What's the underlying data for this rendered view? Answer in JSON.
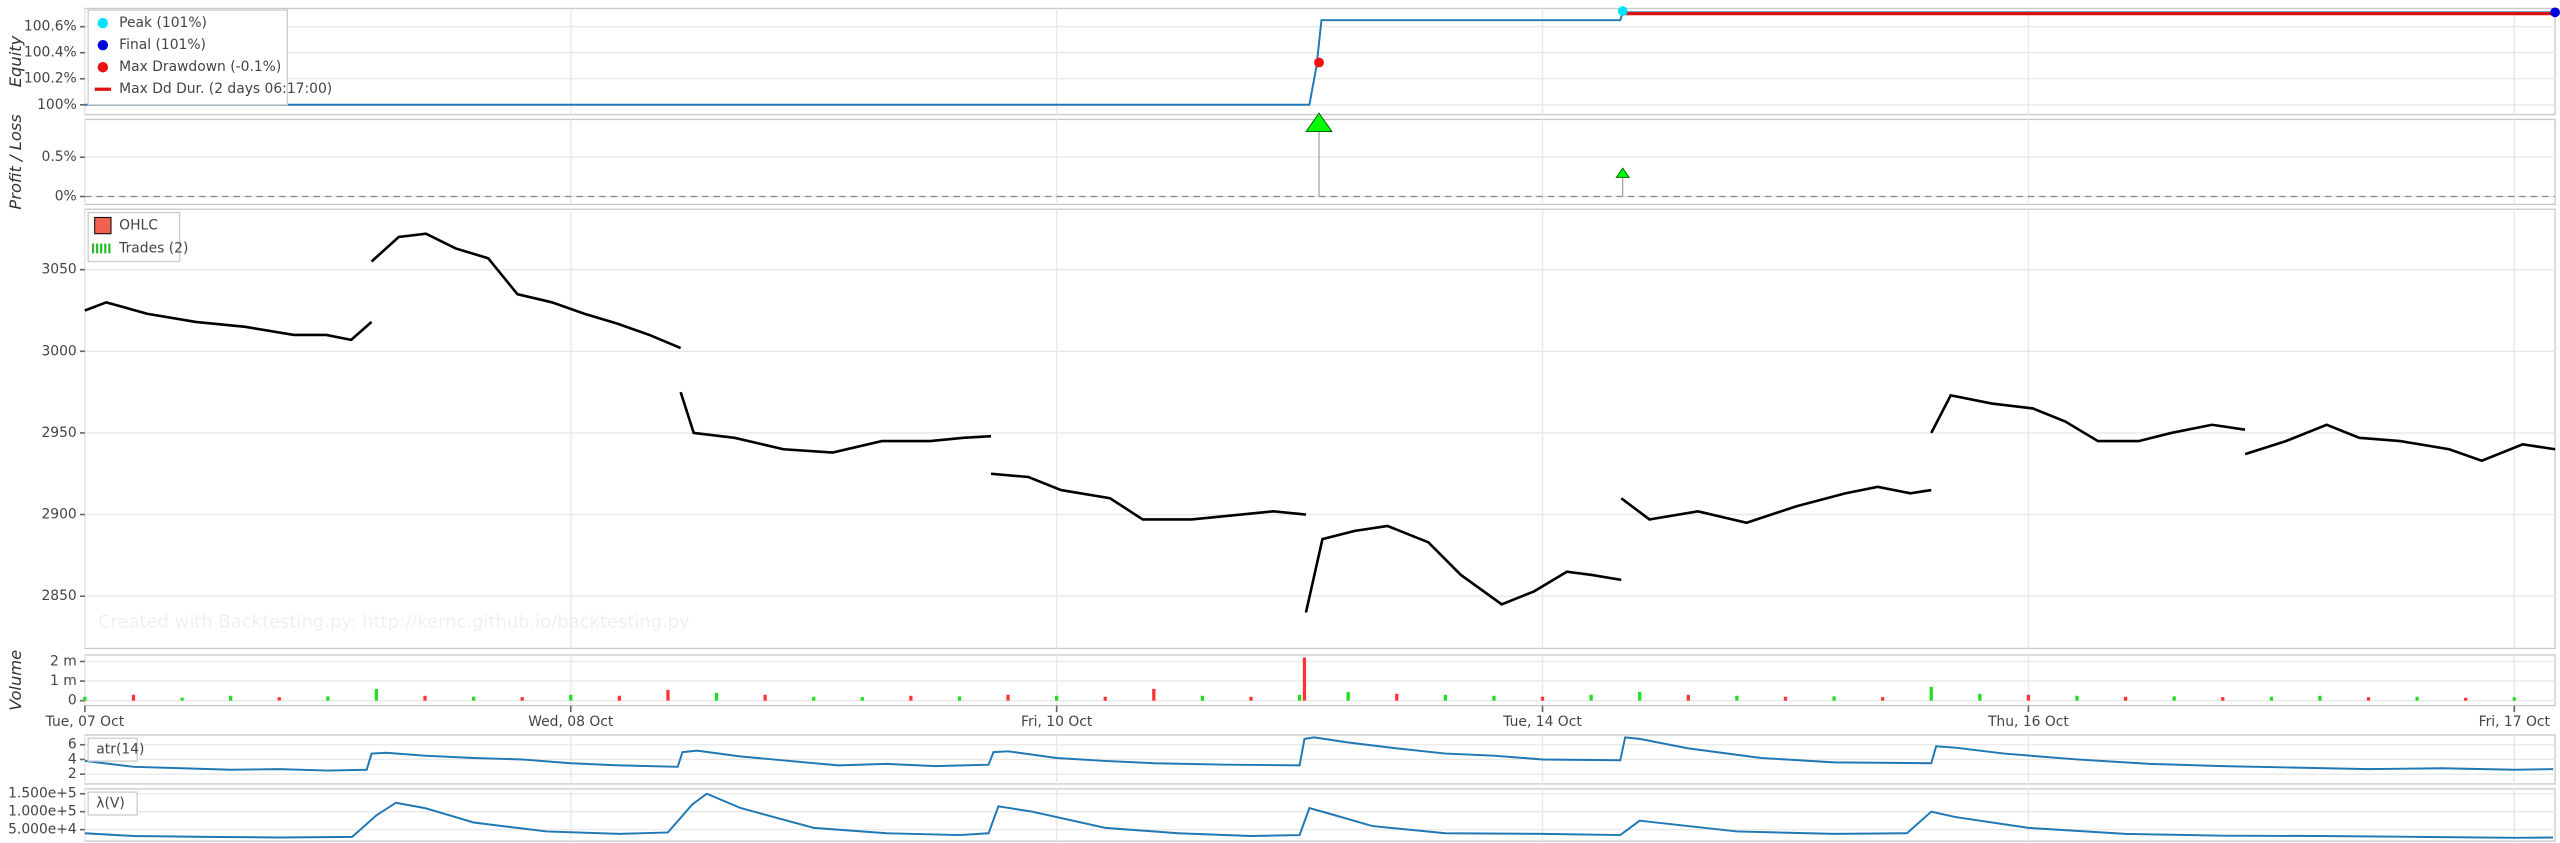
{
  "x_axis": {
    "xlim": [
      0,
      508.4
    ],
    "xticks": [
      {
        "value": 0,
        "label": "Tue, 07 Oct"
      },
      {
        "value": 100,
        "label": "Wed, 08 Oct"
      },
      {
        "value": 200,
        "label": "Fri, 10 Oct"
      },
      {
        "value": 300,
        "label": "Tue, 14 Oct"
      },
      {
        "value": 400,
        "label": "Thu, 16 Oct"
      },
      {
        "value": 500,
        "label": "Fri, 17 Oct"
      }
    ]
  },
  "chart_data": [
    {
      "type": "line",
      "ylabel": "Equity",
      "color": "#1f77b4",
      "ylim": [
        99.925,
        100.74
      ],
      "yticks": [
        {
          "value": 100,
          "label": "100%"
        },
        {
          "value": 100.2,
          "label": "100.2%"
        },
        {
          "value": 100.4,
          "label": "100.4%"
        },
        {
          "value": 100.6,
          "label": "100.6%"
        }
      ],
      "x": [
        0,
        252,
        253.5,
        254.5,
        316,
        316.5,
        508.4
      ],
      "values": [
        100,
        100,
        100.3,
        100.65,
        100.65,
        100.71,
        100.71
      ],
      "markers": [
        {
          "label": "Peak (101%)",
          "color": "#00e5ff",
          "x": 316.5,
          "value": 100.72
        },
        {
          "label": "Final (101%)",
          "color": "#0000dd",
          "x": 508.4,
          "value": 100.71
        },
        {
          "label": "Max Drawdown (-0.1%)",
          "color": "#ee1111",
          "x": 254,
          "value": 100.325
        }
      ],
      "duration": {
        "label": "Max Dd Dur. (2 days 06:17:00)",
        "color": "#dd1111",
        "x": [
          316.5,
          508.4
        ],
        "value": 100.7
      }
    },
    {
      "type": "scatter",
      "ylabel": "Profit / Loss",
      "color": "#00ff00",
      "ylim": [
        -0.1,
        0.98
      ],
      "zero_line": true,
      "yticks": [
        {
          "value": 0,
          "label": "0%"
        },
        {
          "value": 0.5,
          "label": "0.5%"
        }
      ],
      "x": [
        254,
        316.5
      ],
      "values": [
        0.92,
        0.29
      ]
    },
    {
      "type": "line",
      "color": "#000000",
      "ylim": [
        2818,
        3087
      ],
      "yticks": [
        2850,
        2900,
        2950,
        3000,
        3050
      ],
      "legend": [
        {
          "label": "OHLC",
          "color": "#f0624d"
        },
        {
          "label": "Trades (2)",
          "color": "#22bb22"
        }
      ],
      "watermark": "Created with Backtesting.py: http://kernc.github.io/backtesting.py",
      "x": [
        0,
        4.4,
        12.8,
        22.8,
        33,
        43,
        49.7,
        54.8,
        59,
        59,
        59,
        64.6,
        70.2,
        76.3,
        83,
        89,
        96.1,
        102.8,
        109.5,
        116.2,
        122.6,
        122.6,
        122.6,
        125.3,
        133.7,
        143.8,
        153.9,
        164,
        174,
        180.8,
        186.5,
        186.5,
        186.5,
        194.2,
        200.9,
        211,
        217.7,
        227.8,
        237.9,
        244.6,
        251.3,
        251.3,
        251.3,
        254.7,
        261.4,
        268.1,
        276.5,
        283.2,
        291.6,
        298.3,
        305,
        310.1,
        316.2,
        316.2,
        316.2,
        322,
        332,
        342,
        352.2,
        362.3,
        369,
        375.7,
        380,
        380,
        380,
        384,
        392.5,
        400.9,
        407.6,
        414.3,
        422.7,
        429.4,
        437.8,
        444.6,
        444.6,
        444.6,
        453,
        461.4,
        468.1,
        476.5,
        486.6,
        493.3,
        501.7,
        508.4
      ],
      "values": [
        3025,
        3030,
        3023,
        3018,
        3015,
        3010,
        3010,
        3007,
        3018,
        null,
        3055,
        3070,
        3072,
        3063,
        3057,
        3035,
        3030,
        3023,
        3017,
        3010,
        3002,
        null,
        2975,
        2950,
        2947,
        2940,
        2938,
        2945,
        2945,
        2947,
        2948,
        null,
        2925,
        2923,
        2915,
        2910,
        2897,
        2897,
        2900,
        2902,
        2900,
        null,
        2840,
        2885,
        2890,
        2893,
        2883,
        2863,
        2845,
        2853,
        2865,
        2863,
        2860,
        null,
        2910,
        2897,
        2902,
        2895,
        2905,
        2913,
        2917,
        2913,
        2915,
        null,
        2950,
        2973,
        2968,
        2965,
        2957,
        2945,
        2945,
        2950,
        2955,
        2952,
        null,
        2937,
        2945,
        2955,
        2947,
        2945,
        2940,
        2933,
        2943,
        2940
      ]
    },
    {
      "type": "bar",
      "ylabel": "Volume",
      "ylim": [
        -250000,
        2330000
      ],
      "yticks": [
        0,
        {
          "value": 1000000,
          "label": "1 m"
        },
        {
          "value": 2000000,
          "label": "2 m"
        }
      ],
      "x": [
        0,
        10,
        20,
        30,
        40,
        50,
        60,
        70,
        80,
        90,
        100,
        110,
        120,
        130,
        140,
        150,
        160,
        170,
        180,
        190,
        200,
        210,
        220,
        230,
        240,
        250,
        251,
        260,
        270,
        280,
        290,
        300,
        310,
        320,
        330,
        340,
        350,
        360,
        370,
        380,
        390,
        400,
        410,
        420,
        430,
        440,
        450,
        460,
        470,
        480,
        490,
        500
      ],
      "values": [
        200000,
        300000,
        150000,
        250000,
        180000,
        220000,
        600000,
        250000,
        200000,
        180000,
        300000,
        250000,
        550000,
        400000,
        300000,
        200000,
        180000,
        250000,
        220000,
        300000,
        250000,
        200000,
        600000,
        250000,
        200000,
        300000,
        2200000,
        450000,
        350000,
        300000,
        250000,
        200000,
        300000,
        450000,
        300000,
        250000,
        200000,
        220000,
        180000,
        700000,
        350000,
        300000,
        250000,
        200000,
        220000,
        180000,
        200000,
        250000,
        180000,
        200000,
        150000,
        180000
      ],
      "colors": [
        "#22dd22",
        "#ff3333",
        "#22dd22",
        "#22dd22",
        "#ff3333",
        "#22dd22",
        "#22dd22",
        "#ff3333",
        "#22dd22",
        "#ff3333",
        "#22dd22",
        "#ff3333",
        "#ff3333",
        "#22dd22",
        "#ff3333",
        "#22dd22",
        "#22dd22",
        "#ff3333",
        "#22dd22",
        "#ff3333",
        "#22dd22",
        "#ff3333",
        "#ff3333",
        "#22dd22",
        "#ff3333",
        "#22dd22",
        "#ff3333",
        "#22dd22",
        "#ff3333",
        "#22dd22",
        "#22dd22",
        "#ff3333",
        "#22dd22",
        "#22dd22",
        "#ff3333",
        "#22dd22",
        "#ff3333",
        "#22dd22",
        "#ff3333",
        "#22dd22",
        "#22dd22",
        "#ff3333",
        "#22dd22",
        "#ff3333",
        "#22dd22",
        "#ff3333",
        "#22dd22",
        "#22dd22",
        "#ff3333",
        "#22dd22",
        "#ff3333",
        "#22dd22"
      ]
    },
    {
      "type": "line",
      "label": "atr(14)",
      "color": "#1f77b4",
      "ylim": [
        0.67,
        7.33
      ],
      "yticks": [
        2,
        4,
        6
      ],
      "x": [
        0,
        10,
        20,
        30,
        40,
        50,
        58,
        59,
        62,
        70,
        80,
        90,
        100,
        110,
        122,
        123,
        126,
        135,
        145,
        155,
        165,
        175,
        186,
        187,
        190,
        200,
        210,
        220,
        235,
        250,
        251,
        253,
        260,
        270,
        280,
        290,
        300,
        316,
        317,
        320,
        330,
        345,
        360,
        380,
        381,
        385,
        395,
        410,
        425,
        440,
        455,
        470,
        485,
        500,
        508
      ],
      "values": [
        3.8,
        3,
        2.8,
        2.6,
        2.7,
        2.5,
        2.6,
        4.8,
        4.9,
        4.5,
        4.2,
        4,
        3.5,
        3.2,
        3,
        5,
        5.2,
        4.4,
        3.8,
        3.2,
        3.4,
        3.1,
        3.3,
        5,
        5.1,
        4.2,
        3.8,
        3.5,
        3.3,
        3.2,
        6.8,
        7,
        6.3,
        5.5,
        4.8,
        4.5,
        4,
        3.9,
        7,
        6.8,
        5.5,
        4.2,
        3.6,
        3.5,
        5.8,
        5.6,
        4.8,
        4,
        3.4,
        3.1,
        2.9,
        2.7,
        2.8,
        2.6,
        2.7
      ]
    },
    {
      "type": "line",
      "label": "λ(V)",
      "color": "#1f77b4",
      "ylim": [
        18000,
        163600
      ],
      "yticks": [
        {
          "value": 50000,
          "label": "5.000e+4"
        },
        {
          "value": 100000,
          "label": "1.000e+5"
        },
        {
          "value": 150000,
          "label": "1.500e+5"
        }
      ],
      "x": [
        0,
        10,
        25,
        40,
        55,
        60,
        64,
        70,
        80,
        95,
        110,
        120,
        125,
        128,
        135,
        150,
        165,
        180,
        186,
        188,
        195,
        210,
        225,
        240,
        250,
        252,
        256,
        265,
        280,
        300,
        316,
        320,
        340,
        360,
        375,
        380,
        385,
        400,
        420,
        440,
        460,
        480,
        500,
        508
      ],
      "values": [
        40000,
        32000,
        30000,
        28000,
        30000,
        90000,
        125000,
        110000,
        70000,
        45000,
        38000,
        42000,
        120000,
        150000,
        110000,
        55000,
        40000,
        35000,
        40000,
        115000,
        100000,
        55000,
        40000,
        32000,
        35000,
        110000,
        95000,
        60000,
        40000,
        38000,
        35000,
        75000,
        45000,
        38000,
        40000,
        100000,
        85000,
        55000,
        38000,
        33000,
        32000,
        30000,
        27000,
        28000
      ]
    }
  ]
}
